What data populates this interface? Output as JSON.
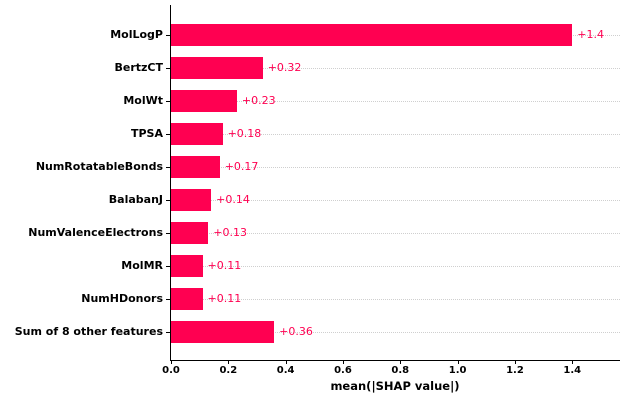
{
  "chart_data": {
    "type": "bar",
    "orientation": "horizontal",
    "title": "",
    "xlabel": "mean(|SHAP value|)",
    "ylabel": "",
    "categories": [
      "MolLogP",
      "BertzCT",
      "MolWt",
      "TPSA",
      "NumRotatableBonds",
      "BalabanJ",
      "NumValenceElectrons",
      "MolMR",
      "NumHDonors",
      "Sum of 8 other features"
    ],
    "values": [
      1.4,
      0.32,
      0.23,
      0.18,
      0.17,
      0.14,
      0.13,
      0.11,
      0.11,
      0.36
    ],
    "value_labels": [
      "+1.4",
      "+0.32",
      "+0.23",
      "+0.18",
      "+0.17",
      "+0.14",
      "+0.13",
      "+0.11",
      "+0.11",
      "+0.36"
    ],
    "xticks": [
      0.0,
      0.2,
      0.4,
      0.6,
      0.8,
      1.0,
      1.2,
      1.4
    ],
    "xtick_labels": [
      "0.0",
      "0.2",
      "0.4",
      "0.6",
      "0.8",
      "1.0",
      "1.2",
      "1.4"
    ],
    "xlim": [
      0,
      1.5666
    ],
    "grid": "horizontal-dotted",
    "legend": "none",
    "bar_color": "#ff0051",
    "value_label_color": "#ff0051",
    "gridline_color": "#cfcfcf",
    "axis_color": "#000000"
  }
}
